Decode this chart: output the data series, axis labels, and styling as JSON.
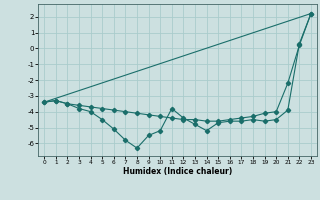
{
  "xlabel": "Humidex (Indice chaleur)",
  "bg_color": "#cce0e0",
  "grid_color": "#aacccc",
  "line_color": "#1a6e6a",
  "xlim": [
    -0.5,
    23.5
  ],
  "ylim": [
    -6.8,
    2.8
  ],
  "yticks": [
    2,
    1,
    0,
    -1,
    -2,
    -3,
    -4,
    -5,
    -6
  ],
  "xticks": [
    0,
    1,
    2,
    3,
    4,
    5,
    6,
    7,
    8,
    9,
    10,
    11,
    12,
    13,
    14,
    15,
    16,
    17,
    18,
    19,
    20,
    21,
    22,
    23
  ],
  "line1_x": [
    0,
    1,
    2,
    3,
    4,
    5,
    6,
    7,
    8,
    9,
    10,
    11,
    12,
    13,
    14,
    15,
    16,
    17,
    18,
    19,
    20,
    21,
    22,
    23
  ],
  "line1_y": [
    -3.4,
    -3.3,
    -3.5,
    -3.8,
    -4.0,
    -4.5,
    -5.1,
    -5.8,
    -6.3,
    -5.5,
    -5.2,
    -3.8,
    -4.4,
    -4.8,
    -5.2,
    -4.7,
    -4.6,
    -4.6,
    -4.5,
    -4.6,
    -4.5,
    -3.9,
    0.3,
    2.2
  ],
  "line2_x": [
    0,
    23
  ],
  "line2_y": [
    -3.4,
    2.2
  ],
  "line3_x": [
    0,
    1,
    2,
    3,
    4,
    5,
    6,
    7,
    8,
    9,
    10,
    11,
    12,
    13,
    14,
    15,
    16,
    17,
    18,
    19,
    20,
    21,
    22,
    23
  ],
  "line3_y": [
    -3.4,
    -3.3,
    -3.5,
    -3.6,
    -3.7,
    -3.8,
    -3.9,
    -4.0,
    -4.1,
    -4.2,
    -4.3,
    -4.4,
    -4.5,
    -4.5,
    -4.6,
    -4.6,
    -4.5,
    -4.4,
    -4.3,
    -4.1,
    -4.0,
    -2.2,
    0.2,
    2.2
  ]
}
